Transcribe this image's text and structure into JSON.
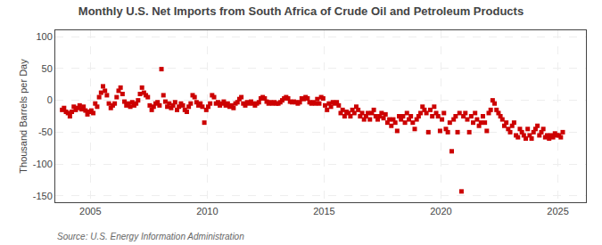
{
  "chart_data": {
    "type": "scatter",
    "title": "Monthly U.S. Net Imports from South Africa of Crude Oil and Petroleum Products",
    "ylabel": "Thousand Barrels per Day",
    "annotations": [
      "Source: U.S. Energy Information Administration"
    ],
    "color": "#cc0000",
    "marker": "square",
    "grid": true,
    "xlim": [
      2003.5,
      2026.2
    ],
    "xticks": [
      2005,
      2010,
      2015,
      2020,
      2025
    ],
    "ylim": [
      -160,
      110
    ],
    "yticks": [
      -150,
      -100,
      -50,
      0,
      50,
      100
    ],
    "x": [
      2003.7917,
      2003.875,
      2003.9583,
      2004.0417,
      2004.125,
      2004.2083,
      2004.2917,
      2004.375,
      2004.4583,
      2004.5417,
      2004.625,
      2004.7083,
      2004.7917,
      2004.875,
      2004.9583,
      2005.0417,
      2005.125,
      2005.2083,
      2005.2917,
      2005.375,
      2005.4583,
      2005.5417,
      2005.625,
      2005.7083,
      2005.7917,
      2005.875,
      2005.9583,
      2006.0417,
      2006.125,
      2006.2083,
      2006.2917,
      2006.375,
      2006.4583,
      2006.5417,
      2006.625,
      2006.7083,
      2006.7917,
      2006.875,
      2006.9583,
      2007.0417,
      2007.125,
      2007.2083,
      2007.2917,
      2007.375,
      2007.4583,
      2007.5417,
      2007.625,
      2007.7083,
      2007.7917,
      2007.875,
      2007.9583,
      2008.0417,
      2008.125,
      2008.2083,
      2008.2917,
      2008.375,
      2008.4583,
      2008.5417,
      2008.625,
      2008.7083,
      2008.7917,
      2008.875,
      2008.9583,
      2009.0417,
      2009.125,
      2009.2083,
      2009.2917,
      2009.375,
      2009.4583,
      2009.5417,
      2009.625,
      2009.7083,
      2009.7917,
      2009.875,
      2009.9583,
      2010.0417,
      2010.125,
      2010.2083,
      2010.2917,
      2010.375,
      2010.4583,
      2010.5417,
      2010.625,
      2010.7083,
      2010.7917,
      2010.875,
      2010.9583,
      2011.0417,
      2011.125,
      2011.2083,
      2011.2917,
      2011.375,
      2011.4583,
      2011.5417,
      2011.625,
      2011.7083,
      2011.7917,
      2011.875,
      2011.9583,
      2012.0417,
      2012.125,
      2012.2083,
      2012.2917,
      2012.375,
      2012.4583,
      2012.5417,
      2012.625,
      2012.7083,
      2012.7917,
      2012.875,
      2012.9583,
      2013.0417,
      2013.125,
      2013.2083,
      2013.2917,
      2013.375,
      2013.4583,
      2013.5417,
      2013.625,
      2013.7083,
      2013.7917,
      2013.875,
      2013.9583,
      2014.0417,
      2014.125,
      2014.2083,
      2014.2917,
      2014.375,
      2014.4583,
      2014.5417,
      2014.625,
      2014.7083,
      2014.7917,
      2014.875,
      2014.9583,
      2015.0417,
      2015.125,
      2015.2083,
      2015.2917,
      2015.375,
      2015.4583,
      2015.5417,
      2015.625,
      2015.7083,
      2015.7917,
      2015.875,
      2015.9583,
      2016.0417,
      2016.125,
      2016.2083,
      2016.2917,
      2016.375,
      2016.4583,
      2016.5417,
      2016.625,
      2016.7083,
      2016.7917,
      2016.875,
      2016.9583,
      2017.0417,
      2017.125,
      2017.2083,
      2017.2917,
      2017.375,
      2017.4583,
      2017.5417,
      2017.625,
      2017.7083,
      2017.7917,
      2017.875,
      2017.9583,
      2018.0417,
      2018.125,
      2018.2083,
      2018.2917,
      2018.375,
      2018.4583,
      2018.5417,
      2018.625,
      2018.7083,
      2018.7917,
      2018.875,
      2018.9583,
      2019.0417,
      2019.125,
      2019.2083,
      2019.2917,
      2019.375,
      2019.4583,
      2019.5417,
      2019.625,
      2019.7083,
      2019.7917,
      2019.875,
      2019.9583,
      2020.0417,
      2020.125,
      2020.2083,
      2020.2917,
      2020.375,
      2020.4583,
      2020.5417,
      2020.625,
      2020.7083,
      2020.7917,
      2020.875,
      2020.9583,
      2021.0417,
      2021.125,
      2021.2083,
      2021.2917,
      2021.375,
      2021.4583,
      2021.5417,
      2021.625,
      2021.7083,
      2021.7917,
      2021.875,
      2021.9583,
      2022.0417,
      2022.125,
      2022.2083,
      2022.2917,
      2022.375,
      2022.4583,
      2022.5417,
      2022.625,
      2022.7083,
      2022.7917,
      2022.875,
      2022.9583,
      2023.0417,
      2023.125,
      2023.2083,
      2023.2917,
      2023.375,
      2023.4583,
      2023.5417,
      2023.625,
      2023.7083,
      2023.7917,
      2023.875,
      2023.9583,
      2024.0417,
      2024.125,
      2024.2083,
      2024.2917,
      2024.375,
      2024.4583,
      2024.5417,
      2024.625,
      2024.7083,
      2024.7917,
      2024.875,
      2024.9583,
      2025.0417,
      2025.125,
      2025.2083
    ],
    "values": [
      -15,
      -12,
      -18,
      -20,
      -25,
      -18,
      -10,
      -15,
      -12,
      -8,
      -14,
      -10,
      -16,
      -22,
      -18,
      -16,
      -20,
      -5,
      -10,
      5,
      12,
      22,
      15,
      8,
      -5,
      -12,
      -8,
      -5,
      5,
      15,
      20,
      10,
      -2,
      -8,
      -5,
      -10,
      -3,
      -8,
      -5,
      0,
      10,
      20,
      12,
      8,
      5,
      -8,
      -15,
      -10,
      -5,
      -3,
      -8,
      49,
      8,
      -2,
      -10,
      -5,
      -12,
      -8,
      -3,
      -15,
      -10,
      -5,
      -8,
      -15,
      -18,
      -10,
      -5,
      8,
      5,
      -3,
      -8,
      -5,
      -10,
      -35,
      -15,
      -10,
      -5,
      8,
      5,
      -5,
      -3,
      -8,
      -5,
      -2,
      -8,
      -5,
      -10,
      -8,
      -12,
      -5,
      -3,
      2,
      5,
      -5,
      -8,
      -3,
      -5,
      -2,
      -5,
      -8,
      -5,
      -3,
      3,
      5,
      3,
      -2,
      -5,
      -3,
      -5,
      -3,
      -5,
      -5,
      -3,
      0,
      3,
      5,
      3,
      -2,
      -3,
      -2,
      -3,
      -5,
      -3,
      3,
      2,
      5,
      3,
      -3,
      -5,
      -3,
      -5,
      2,
      -5,
      5,
      3,
      -8,
      -15,
      -5,
      -10,
      -3,
      -5,
      -3,
      -8,
      -20,
      -15,
      -25,
      -18,
      -20,
      -25,
      -15,
      -20,
      -10,
      -15,
      -25,
      -20,
      -30,
      -25,
      -20,
      -30,
      -20,
      -15,
      -25,
      -30,
      -25,
      -20,
      -28,
      -22,
      -35,
      -30,
      -40,
      -30,
      -35,
      -48,
      -25,
      -30,
      -25,
      -35,
      -20,
      -30,
      -25,
      -35,
      -45,
      -30,
      -25,
      -20,
      -10,
      -15,
      -20,
      -50,
      -15,
      -25,
      -10,
      -20,
      -25,
      -48,
      -30,
      -20,
      -45,
      -50,
      -35,
      -80,
      -30,
      -25,
      -50,
      -20,
      -143,
      -25,
      -20,
      -30,
      -50,
      -25,
      -35,
      -20,
      -30,
      -40,
      -35,
      -25,
      -35,
      -48,
      -20,
      -15,
      0,
      -5,
      -15,
      -20,
      -25,
      -30,
      -40,
      -35,
      -45,
      -50,
      -40,
      -35,
      -55,
      -58,
      -45,
      -50,
      -55,
      -60,
      -45,
      -55,
      -60,
      -50,
      -45,
      -40,
      -55,
      -50,
      -45,
      -58,
      -55,
      -60,
      -55,
      -58,
      -52,
      -55,
      -55,
      -58,
      -50
    ]
  }
}
